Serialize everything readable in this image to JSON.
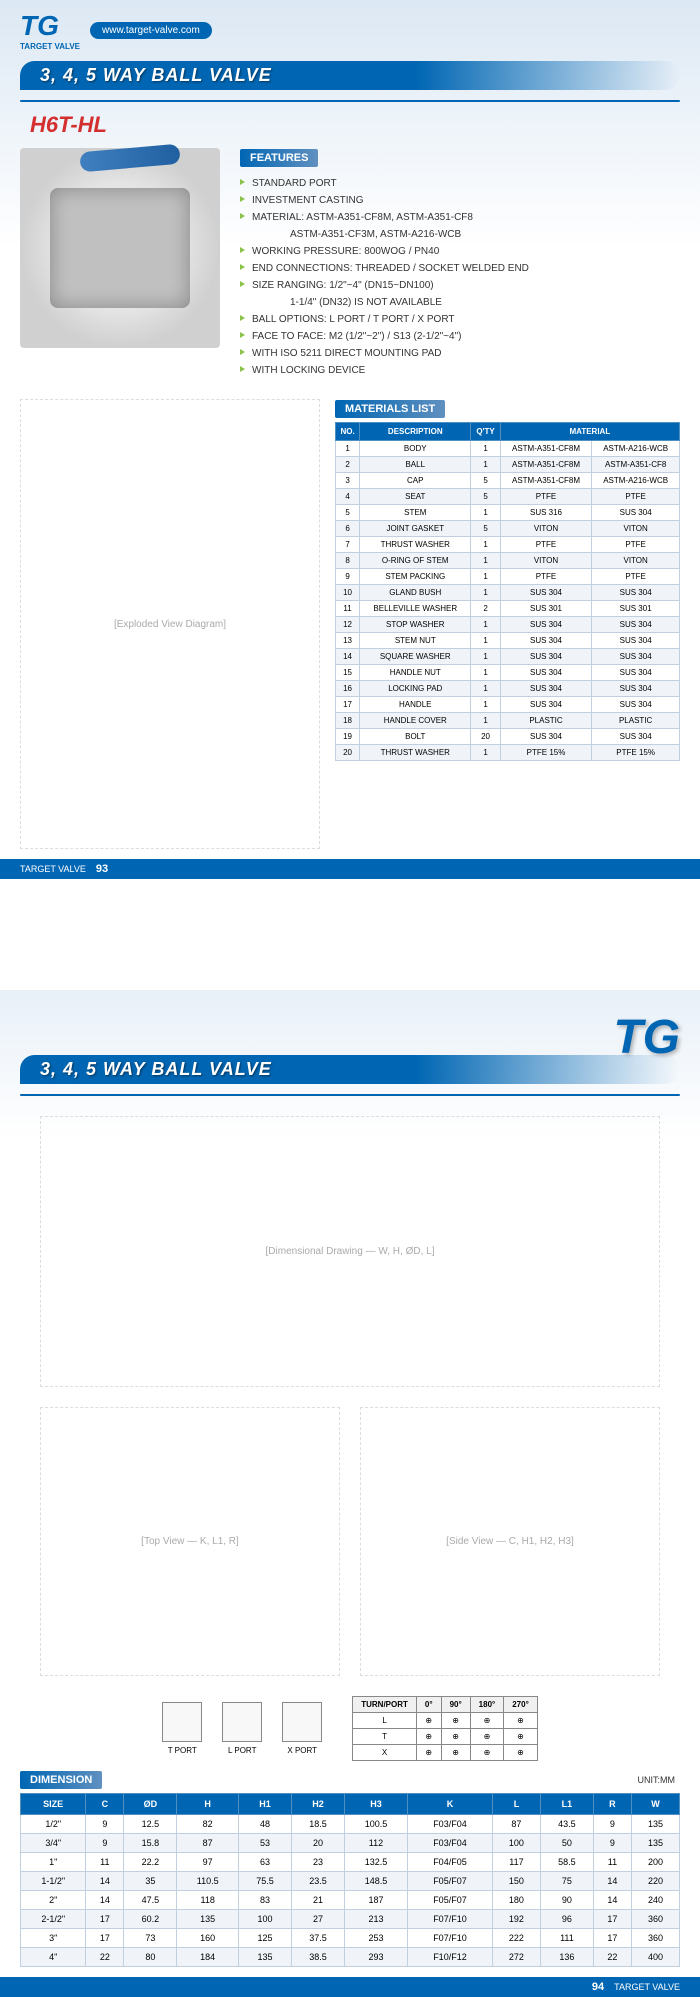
{
  "brand": "TG",
  "brand_sub": "TARGET VALVE",
  "url": "www.target-valve.com",
  "title": "3, 4, 5 WAY BALL VALVE",
  "model": "H6T-HL",
  "features_label": "FEATURES",
  "features": [
    "STANDARD PORT",
    "INVESTMENT CASTING",
    "MATERIAL: ASTM-A351-CF8M, ASTM-A351-CF8",
    "ASTM-A351-CF3M, ASTM-A216-WCB",
    "WORKING PRESSURE: 800WOG / PN40",
    "END CONNECTIONS: THREADED / SOCKET WELDED END",
    "SIZE RANGING: 1/2\"~4\" (DN15~DN100)",
    "1-1/4\" (DN32) IS NOT AVAILABLE",
    "BALL OPTIONS: L PORT / T PORT / X PORT",
    "FACE TO FACE: M2 (1/2\"~2\") / S13 (2-1/2\"~4\")",
    "WITH ISO 5211 DIRECT MOUNTING PAD",
    "WITH LOCKING DEVICE"
  ],
  "feature_indent": [
    false,
    false,
    false,
    true,
    false,
    false,
    false,
    true,
    false,
    false,
    false,
    false
  ],
  "materials_label": "MATERIALS LIST",
  "mat_headers": [
    "NO.",
    "DESCRIPTION",
    "Q'TY",
    "MATERIAL"
  ],
  "mat_rows": [
    [
      "1",
      "BODY",
      "1",
      "ASTM-A351-CF8M",
      "ASTM-A216-WCB"
    ],
    [
      "2",
      "BALL",
      "1",
      "ASTM-A351-CF8M",
      "ASTM-A351-CF8"
    ],
    [
      "3",
      "CAP",
      "5",
      "ASTM-A351-CF8M",
      "ASTM-A216-WCB"
    ],
    [
      "4",
      "SEAT",
      "5",
      "PTFE",
      "PTFE"
    ],
    [
      "5",
      "STEM",
      "1",
      "SUS 316",
      "SUS 304"
    ],
    [
      "6",
      "JOINT GASKET",
      "5",
      "VITON",
      "VITON"
    ],
    [
      "7",
      "THRUST WASHER",
      "1",
      "PTFE",
      "PTFE"
    ],
    [
      "8",
      "O-RING OF STEM",
      "1",
      "VITON",
      "VITON"
    ],
    [
      "9",
      "STEM PACKING",
      "1",
      "PTFE",
      "PTFE"
    ],
    [
      "10",
      "GLAND BUSH",
      "1",
      "SUS 304",
      "SUS 304"
    ],
    [
      "11",
      "BELLEVILLE WASHER",
      "2",
      "SUS 301",
      "SUS 301"
    ],
    [
      "12",
      "STOP WASHER",
      "1",
      "SUS 304",
      "SUS 304"
    ],
    [
      "13",
      "STEM NUT",
      "1",
      "SUS 304",
      "SUS 304"
    ],
    [
      "14",
      "SQUARE WASHER",
      "1",
      "SUS 304",
      "SUS 304"
    ],
    [
      "15",
      "HANDLE NUT",
      "1",
      "SUS 304",
      "SUS 304"
    ],
    [
      "16",
      "LOCKING PAD",
      "1",
      "SUS 304",
      "SUS 304"
    ],
    [
      "17",
      "HANDLE",
      "1",
      "SUS 304",
      "SUS 304"
    ],
    [
      "18",
      "HANDLE COVER",
      "1",
      "PLASTIC",
      "PLASTIC"
    ],
    [
      "19",
      "BOLT",
      "20",
      "SUS 304",
      "SUS 304"
    ],
    [
      "20",
      "THRUST WASHER",
      "1",
      "PTFE 15%",
      "PTFE 15%"
    ]
  ],
  "page1_footer": "TARGET VALVE",
  "page1_num": "93",
  "port_types": [
    "T PORT",
    "L PORT",
    "X PORT"
  ],
  "turn_headers": [
    "TURN/PORT",
    "0°",
    "90°",
    "180°",
    "270°"
  ],
  "turn_labels": [
    "L",
    "T",
    "X"
  ],
  "dim_label": "DIMENSION",
  "unit_label": "UNIT:MM",
  "dim_headers": [
    "SIZE",
    "C",
    "ØD",
    "H",
    "H1",
    "H2",
    "H3",
    "K",
    "L",
    "L1",
    "R",
    "W"
  ],
  "dim_rows": [
    [
      "1/2\"",
      "9",
      "12.5",
      "82",
      "48",
      "18.5",
      "100.5",
      "F03/F04",
      "87",
      "43.5",
      "9",
      "135"
    ],
    [
      "3/4\"",
      "9",
      "15.8",
      "87",
      "53",
      "20",
      "112",
      "F03/F04",
      "100",
      "50",
      "9",
      "135"
    ],
    [
      "1\"",
      "11",
      "22.2",
      "97",
      "63",
      "23",
      "132.5",
      "F04/F05",
      "117",
      "58.5",
      "11",
      "200"
    ],
    [
      "1-1/2\"",
      "14",
      "35",
      "110.5",
      "75.5",
      "23.5",
      "148.5",
      "F05/F07",
      "150",
      "75",
      "14",
      "220"
    ],
    [
      "2\"",
      "14",
      "47.5",
      "118",
      "83",
      "21",
      "187",
      "F05/F07",
      "180",
      "90",
      "14",
      "240"
    ],
    [
      "2-1/2\"",
      "17",
      "60.2",
      "135",
      "100",
      "27",
      "213",
      "F07/F10",
      "192",
      "96",
      "17",
      "360"
    ],
    [
      "3\"",
      "17",
      "73",
      "160",
      "125",
      "37.5",
      "253",
      "F07/F10",
      "222",
      "111",
      "17",
      "360"
    ],
    [
      "4\"",
      "22",
      "80",
      "184",
      "135",
      "38.5",
      "293",
      "F10/F12",
      "272",
      "136",
      "22",
      "400"
    ]
  ],
  "page2_footer": "TARGET VALVE",
  "page2_num": "94"
}
